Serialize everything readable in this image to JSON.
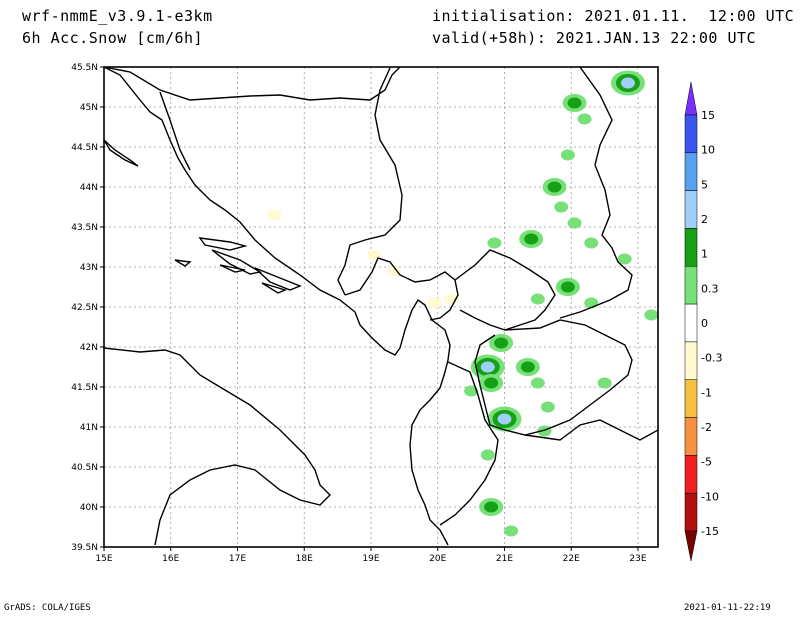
{
  "header": {
    "model": "wrf-nmmE_v3.9.1-e3km",
    "field": "6h Acc.Snow [cm/6h]",
    "init": "initialisation: 2021.01.11.  12:00 UTC",
    "valid": "valid(+58h): 2021.JAN.13 22:00 UTC"
  },
  "footer": {
    "left": "GrADS: COLA/IGES",
    "right": "2021-01-11-22:19"
  },
  "axes": {
    "lon_ticks": [
      "15E",
      "16E",
      "17E",
      "18E",
      "19E",
      "20E",
      "21E",
      "22E",
      "23E"
    ],
    "lat_ticks": [
      "45.5N",
      "45N",
      "44.5N",
      "44N",
      "43.5N",
      "43N",
      "42.5N",
      "42N",
      "41.5N",
      "41N",
      "40.5N",
      "40N",
      "39.5N"
    ],
    "lon_range": [
      15,
      23.3
    ],
    "lat_range": [
      39.5,
      45.5
    ],
    "grid": true
  },
  "legend": {
    "labels": [
      "15",
      "10",
      "5",
      "2",
      "1",
      "0.3",
      "0",
      "-0.3",
      "-1",
      "-2",
      "-5",
      "-10",
      "-15"
    ],
    "colors": [
      "#7b2fff",
      "#3d55f0",
      "#5aa0f0",
      "#a0d0f8",
      "#16a016",
      "#78e078",
      "#ffffff",
      "#fffad0",
      "#f5c040",
      "#f59040",
      "#f02020",
      "#b01010",
      "#780000"
    ]
  },
  "snow_patches": [
    {
      "lon": 22.05,
      "lat": 45.05,
      "level": 2
    },
    {
      "lon": 22.85,
      "lat": 45.3,
      "level": 3
    },
    {
      "lon": 22.2,
      "lat": 44.85,
      "level": 1
    },
    {
      "lon": 21.95,
      "lat": 44.4,
      "level": 1
    },
    {
      "lon": 21.75,
      "lat": 44.0,
      "level": 2
    },
    {
      "lon": 21.85,
      "lat": 43.75,
      "level": 1
    },
    {
      "lon": 22.05,
      "lat": 43.55,
      "level": 1
    },
    {
      "lon": 21.4,
      "lat": 43.35,
      "level": 2
    },
    {
      "lon": 20.85,
      "lat": 43.3,
      "level": 1
    },
    {
      "lon": 22.3,
      "lat": 43.3,
      "level": 1
    },
    {
      "lon": 22.8,
      "lat": 43.1,
      "level": 1
    },
    {
      "lon": 21.95,
      "lat": 42.75,
      "level": 2
    },
    {
      "lon": 21.5,
      "lat": 42.6,
      "level": 1
    },
    {
      "lon": 22.3,
      "lat": 42.55,
      "level": 1
    },
    {
      "lon": 20.95,
      "lat": 42.05,
      "level": 2
    },
    {
      "lon": 20.75,
      "lat": 41.75,
      "level": 3
    },
    {
      "lon": 20.8,
      "lat": 41.55,
      "level": 2
    },
    {
      "lon": 21.35,
      "lat": 41.75,
      "level": 2
    },
    {
      "lon": 21.5,
      "lat": 41.55,
      "level": 1
    },
    {
      "lon": 21.65,
      "lat": 41.25,
      "level": 1
    },
    {
      "lon": 21.0,
      "lat": 41.1,
      "level": 3
    },
    {
      "lon": 21.6,
      "lat": 40.95,
      "level": 1
    },
    {
      "lon": 20.5,
      "lat": 41.45,
      "level": 1
    },
    {
      "lon": 20.75,
      "lat": 40.65,
      "level": 1
    },
    {
      "lon": 20.8,
      "lat": 40.0,
      "level": 2
    },
    {
      "lon": 21.1,
      "lat": 39.7,
      "level": 1
    },
    {
      "lon": 22.5,
      "lat": 41.55,
      "level": 1
    },
    {
      "lon": 23.2,
      "lat": 42.4,
      "level": 1
    },
    {
      "lon": 17.55,
      "lat": 43.65,
      "level": -1
    },
    {
      "lon": 19.05,
      "lat": 43.15,
      "level": -1
    },
    {
      "lon": 19.35,
      "lat": 42.95,
      "level": -1
    },
    {
      "lon": 19.95,
      "lat": 42.55,
      "level": -1
    },
    {
      "lon": 20.2,
      "lat": 42.6,
      "level": -1
    }
  ]
}
